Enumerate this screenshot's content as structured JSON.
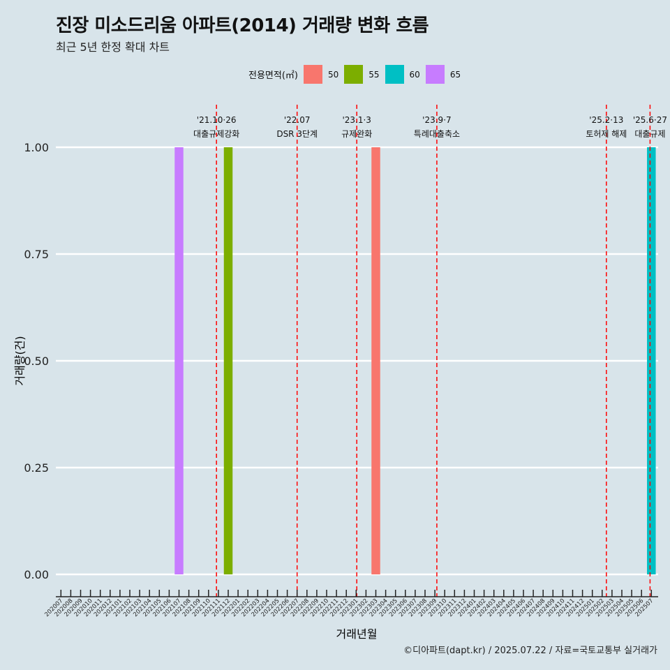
{
  "title": "진장 미소드리움 아파트(2014) 거래량 변화 흐름",
  "subtitle": "최근 5년 한정 확대 차트",
  "credit": "©디아파트(dapt.kr) / 2025.07.22 / 자료=국토교통부 실거래가",
  "legend": {
    "title": "전용면적(㎡)",
    "items": [
      {
        "label": "50",
        "color": "#F8766D"
      },
      {
        "label": "55",
        "color": "#7CAE00"
      },
      {
        "label": "60",
        "color": "#00BFC4"
      },
      {
        "label": "65",
        "color": "#C77CFF"
      }
    ]
  },
  "chart_data": {
    "type": "bar",
    "xlabel": "거래년월",
    "ylabel": "거래량(건)",
    "ylim": [
      0,
      1
    ],
    "yticks": [
      "0.00",
      "0.25",
      "0.50",
      "0.75",
      "1.00"
    ],
    "grid": true,
    "legend_position": "top",
    "categories": [
      "202007",
      "202008",
      "202009",
      "202010",
      "202011",
      "202012",
      "202101",
      "202102",
      "202103",
      "202104",
      "202105",
      "202106",
      "202107",
      "202108",
      "202109",
      "202110",
      "202111",
      "202112",
      "202201",
      "202202",
      "202203",
      "202204",
      "202205",
      "202206",
      "202207",
      "202208",
      "202209",
      "202210",
      "202211",
      "202212",
      "202301",
      "202302",
      "202303",
      "202304",
      "202305",
      "202306",
      "202307",
      "202308",
      "202309",
      "202310",
      "202311",
      "202312",
      "202401",
      "202402",
      "202403",
      "202404",
      "202405",
      "202406",
      "202407",
      "202408",
      "202409",
      "202410",
      "202411",
      "202412",
      "202501",
      "202502",
      "202503",
      "202504",
      "202505",
      "202506",
      "202507"
    ],
    "bars": [
      {
        "month": "202107",
        "area": "65",
        "value": 1
      },
      {
        "month": "202112",
        "area": "55",
        "value": 1
      },
      {
        "month": "202303",
        "area": "50",
        "value": 1
      },
      {
        "month": "202507",
        "area": "60",
        "value": 1
      }
    ],
    "annotations": [
      {
        "date": "2021-10-26",
        "line1": "'21.10·26",
        "line2": "대출규제강화"
      },
      {
        "date": "2022-07-01",
        "line1": "'22.07",
        "line2": "DSR 3단계"
      },
      {
        "date": "2023-01-03",
        "line1": "'23.1·3",
        "line2": "규제완화"
      },
      {
        "date": "2023-09-07",
        "line1": "'23.9·7",
        "line2": "특례대출축소"
      },
      {
        "date": "2025-02-13",
        "line1": "'25.2·13",
        "line2": "토허제 해제"
      },
      {
        "date": "2025-06-27",
        "line1": "'25.6·27",
        "line2": "대출규제"
      }
    ],
    "reference_line_color": "#ff0000"
  }
}
